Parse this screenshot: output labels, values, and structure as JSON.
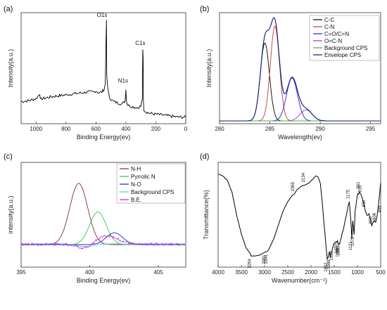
{
  "chart_data": [
    {
      "panel": "(a)",
      "type": "line",
      "xlabel": "Binding Energy(ev)",
      "ylabel": "Intensity(a.u.)",
      "xlim": [
        1100,
        0
      ],
      "x_ticks": [
        "1000",
        "800",
        "600",
        "400",
        "200",
        "0"
      ],
      "series": [
        {
          "color": "#000000",
          "x": [
            1100,
            1050,
            1000,
            975,
            970,
            960,
            930,
            900,
            850,
            800,
            750,
            700,
            650,
            620,
            600,
            580,
            560,
            545,
            538,
            533,
            530,
            528,
            520,
            510,
            500,
            480,
            460,
            440,
            420,
            405,
            400,
            397,
            390,
            380,
            360,
            340,
            320,
            300,
            290,
            287,
            285,
            283,
            280,
            270,
            260,
            240,
            200,
            150,
            100,
            50,
            0
          ],
          "y": [
            0.17,
            0.18,
            0.2,
            0.25,
            0.19,
            0.2,
            0.21,
            0.22,
            0.23,
            0.24,
            0.25,
            0.26,
            0.27,
            0.27,
            0.28,
            0.26,
            0.27,
            0.3,
            0.35,
            0.75,
            1.0,
            0.45,
            0.29,
            0.22,
            0.19,
            0.17,
            0.16,
            0.15,
            0.15,
            0.18,
            0.3,
            0.19,
            0.14,
            0.13,
            0.12,
            0.11,
            0.11,
            0.12,
            0.2,
            0.7,
            0.62,
            0.18,
            0.09,
            0.07,
            0.06,
            0.05,
            0.04,
            0.03,
            0.02,
            0.01,
            0.01
          ]
        }
      ],
      "annotations": [
        {
          "text": "O1s",
          "x": 531,
          "y": 1.03
        },
        {
          "text": "N1s",
          "x": 400,
          "y": 0.35
        },
        {
          "text": "C1s",
          "x": 285,
          "y": 0.74
        }
      ]
    },
    {
      "panel": "(b)",
      "type": "line",
      "xlabel": "Wavelength(ev)",
      "ylabel": "Intensity(a.u.)",
      "xlim": [
        280,
        296
      ],
      "x_ticks": [
        "280",
        "285",
        "290",
        "295"
      ],
      "legend_position": "top-right",
      "series": [
        {
          "name": "C-C",
          "color": "#000000",
          "peak_center": 284.5,
          "peak_height": 0.78,
          "peak_width": 0.45
        },
        {
          "name": "C-N",
          "color": "#c0392b",
          "peak_center": 285.5,
          "peak_height": 0.95,
          "peak_width": 0.45
        },
        {
          "name": "C=O/C=N",
          "color": "#1f1fd6",
          "peak_center": 287.2,
          "peak_height": 0.43,
          "peak_width": 0.55
        },
        {
          "name": "O=C-N",
          "color": "#c71fd6",
          "peak_center": 288.6,
          "peak_height": 0.11,
          "peak_width": 0.6
        },
        {
          "name": "Background CPS",
          "color": "#3cb43c",
          "baseline": 0.0
        },
        {
          "name": "Envelope CPS",
          "color": "#0d1a7a",
          "envelope": true
        }
      ]
    },
    {
      "panel": "(c)",
      "type": "line",
      "xlabel": "Binding Energy(ev)",
      "ylabel": "intensity(a.u.)",
      "xlim": [
        395,
        407
      ],
      "x_ticks": [
        "395",
        "400",
        "405"
      ],
      "legend_position": "top-right",
      "series": [
        {
          "name": "N-H",
          "color": "#8b2a2a",
          "peak_center": 399.2,
          "peak_height": 0.88,
          "peak_width": 0.65
        },
        {
          "name": "Pyrrolic N",
          "color": "#2ecc40",
          "peak_center": 400.6,
          "peak_height": 0.47,
          "peak_width": 0.6
        },
        {
          "name": "N-O",
          "color": "#1f1fd6",
          "peak_center": 401.8,
          "peak_height": 0.17,
          "peak_width": 0.6
        },
        {
          "name": "Background CPS",
          "color": "#33d6d6",
          "baseline": 0.0
        },
        {
          "name": "B.E.",
          "color": "#c71fd6",
          "noisy": true
        }
      ]
    },
    {
      "panel": "(d)",
      "type": "line",
      "xlabel": "Wavenumber(cm⁻¹)",
      "ylabel": "Transmittance(%)",
      "xlim": [
        4000,
        500
      ],
      "x_ticks": [
        "4000",
        "3500",
        "3000",
        "2500",
        "2000",
        "1500",
        "1000",
        "500"
      ],
      "series": [
        {
          "color": "#000000",
          "x": [
            4000,
            3900,
            3800,
            3700,
            3600,
            3500,
            3400,
            3300,
            3294,
            3200,
            3100,
            3000,
            2941,
            2900,
            2800,
            2700,
            2600,
            2500,
            2400,
            2365,
            2300,
            2200,
            2134,
            2050,
            1950,
            1900,
            1850,
            1800,
            1750,
            1700,
            1652,
            1600,
            1588,
            1500,
            1430,
            1398,
            1383,
            1300,
            1200,
            1175,
            1150,
            1121,
            1100,
            1072,
            1050,
            1000,
            951,
            930,
            900,
            850,
            800,
            750,
            690,
            650,
            608,
            580,
            550,
            520,
            500
          ],
          "y": [
            0.95,
            0.93,
            0.88,
            0.75,
            0.5,
            0.3,
            0.15,
            0.08,
            0.06,
            0.06,
            0.07,
            0.1,
            0.11,
            0.14,
            0.25,
            0.4,
            0.55,
            0.65,
            0.72,
            0.73,
            0.78,
            0.82,
            0.83,
            0.85,
            0.9,
            0.93,
            0.92,
            0.85,
            0.6,
            0.3,
            0.02,
            0.1,
            0.05,
            0.2,
            0.22,
            0.18,
            0.2,
            0.35,
            0.6,
            0.65,
            0.5,
            0.25,
            0.45,
            0.3,
            0.55,
            0.72,
            0.76,
            0.74,
            0.7,
            0.6,
            0.5,
            0.52,
            0.38,
            0.45,
            0.42,
            0.48,
            0.6,
            0.75,
            0.85
          ]
        }
      ],
      "band_labels": [
        "3294",
        "2941",
        "2981",
        "2365",
        "2134",
        "1652",
        "1588",
        "1533",
        "1430",
        "1398",
        "1383",
        "1175",
        "1121",
        "1072",
        "951",
        "916",
        "830",
        "690",
        "608",
        "489"
      ]
    }
  ],
  "panel_labels": [
    "(a)",
    "(b)",
    "(c)",
    "(d)"
  ]
}
